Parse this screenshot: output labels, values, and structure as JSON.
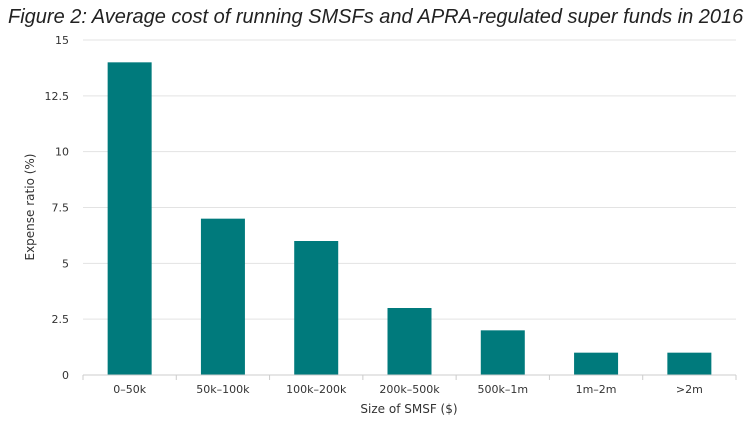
{
  "chart_data": {
    "type": "bar",
    "title": "Figure 2: Average cost of running SMSFs and APRA-regulated super funds in 2016",
    "xlabel": "Size of SMSF ($)",
    "ylabel": "Expense ratio (%)",
    "categories": [
      "0–50k",
      "50k–100k",
      "100k–200k",
      "200k–500k",
      "500k–1m",
      "1m–2m",
      ">2m"
    ],
    "values": [
      14,
      7,
      6,
      3,
      2,
      1,
      1
    ],
    "ylim": [
      0,
      15
    ],
    "yticks": [
      "0",
      "2.5",
      "5",
      "7.5",
      "10",
      "12.5",
      "15"
    ],
    "ytick_values": [
      0,
      2.5,
      5,
      7.5,
      10,
      12.5,
      15
    ],
    "grid": true,
    "bar_color": "#007a7c",
    "grid_color": "#e3e3e3"
  }
}
